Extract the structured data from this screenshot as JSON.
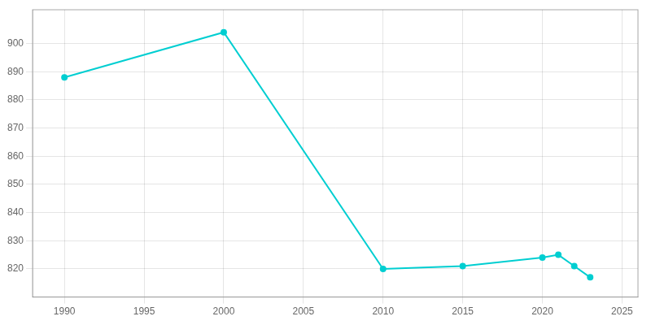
{
  "chart_data": {
    "type": "line",
    "x": [
      1990,
      2000,
      2010,
      2015,
      2020,
      2021,
      2022,
      2023
    ],
    "values": [
      888,
      904,
      820,
      821,
      824,
      825,
      821,
      817
    ],
    "color": "#00CED1",
    "marker": "circle",
    "xlim": [
      1988,
      2026
    ],
    "ylim": [
      810,
      912
    ],
    "xticks": [
      1990,
      1995,
      2000,
      2005,
      2010,
      2015,
      2020,
      2025
    ],
    "yticks": [
      820,
      830,
      840,
      850,
      860,
      870,
      880,
      890,
      900
    ],
    "grid": true
  }
}
